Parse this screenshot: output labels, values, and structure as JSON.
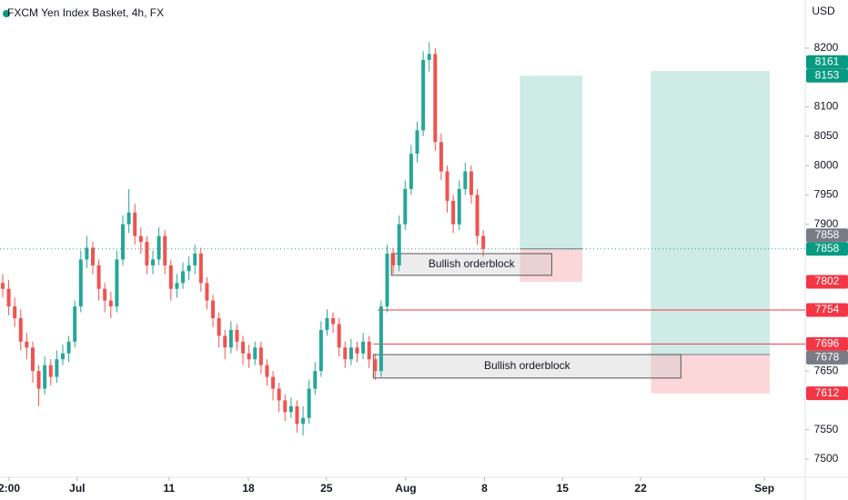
{
  "header": {
    "title": "FXCM Yen Index Basket, 4h, FX",
    "currency": "USD"
  },
  "chart_data": {
    "type": "candlestick",
    "open": [
      7800,
      7790,
      7760,
      7740,
      7700,
      7690,
      7650,
      7620,
      7660,
      7640,
      7670,
      7680,
      7700,
      7760,
      7840,
      7860,
      7830,
      7790,
      7770,
      7760,
      7840,
      7900,
      7920,
      7880,
      7870,
      7830,
      7840,
      7880,
      7830,
      7790,
      7800,
      7820,
      7830,
      7850,
      7800,
      7770,
      7740,
      7710,
      7690,
      7720,
      7700,
      7680,
      7670,
      7690,
      7660,
      7640,
      7620,
      7600,
      7580,
      7590,
      7560,
      7570,
      7620,
      7650,
      7720,
      7740,
      7730,
      7690,
      7670,
      7690,
      7680,
      7700,
      7670,
      7650,
      7760,
      7850,
      7830,
      7900,
      7960,
      8020,
      8060,
      8180,
      8190,
      8040,
      7990,
      7940,
      7900,
      7960,
      7990,
      7950,
      7880
    ],
    "high": [
      7815,
      7805,
      7775,
      7755,
      7715,
      7700,
      7660,
      7675,
      7670,
      7685,
      7695,
      7710,
      7770,
      7855,
      7880,
      7870,
      7840,
      7800,
      7785,
      7855,
      7915,
      7960,
      7935,
      7895,
      7880,
      7855,
      7895,
      7890,
      7840,
      7815,
      7835,
      7845,
      7865,
      7860,
      7810,
      7780,
      7750,
      7720,
      7735,
      7730,
      7710,
      7695,
      7700,
      7700,
      7670,
      7650,
      7630,
      7610,
      7605,
      7600,
      7590,
      7635,
      7665,
      7735,
      7755,
      7750,
      7740,
      7700,
      7705,
      7700,
      7715,
      7710,
      7680,
      7770,
      7865,
      7860,
      7915,
      7975,
      8035,
      8075,
      8195,
      8210,
      8200,
      8055,
      8000,
      7950,
      7975,
      8005,
      8000,
      7960,
      7890
    ],
    "low": [
      7775,
      7745,
      7725,
      7685,
      7670,
      7630,
      7590,
      7610,
      7625,
      7630,
      7660,
      7665,
      7690,
      7750,
      7825,
      7815,
      7770,
      7750,
      7740,
      7750,
      7830,
      7885,
      7865,
      7850,
      7815,
      7815,
      7830,
      7815,
      7770,
      7775,
      7790,
      7805,
      7815,
      7785,
      7755,
      7725,
      7690,
      7670,
      7680,
      7685,
      7660,
      7655,
      7660,
      7645,
      7625,
      7600,
      7580,
      7565,
      7570,
      7545,
      7540,
      7560,
      7610,
      7640,
      7710,
      7715,
      7675,
      7655,
      7660,
      7665,
      7670,
      7655,
      7635,
      7640,
      7750,
      7815,
      7820,
      7890,
      7950,
      8005,
      8050,
      8160,
      8025,
      7975,
      7920,
      7885,
      7890,
      7950,
      7935,
      7865,
      7845
    ],
    "close": [
      7790,
      7760,
      7740,
      7700,
      7690,
      7650,
      7620,
      7660,
      7640,
      7670,
      7680,
      7700,
      7760,
      7840,
      7860,
      7830,
      7790,
      7770,
      7760,
      7840,
      7900,
      7920,
      7880,
      7870,
      7830,
      7840,
      7880,
      7830,
      7790,
      7800,
      7820,
      7830,
      7850,
      7800,
      7770,
      7740,
      7710,
      7690,
      7720,
      7700,
      7680,
      7670,
      7690,
      7660,
      7640,
      7620,
      7600,
      7580,
      7590,
      7560,
      7570,
      7620,
      7650,
      7720,
      7740,
      7730,
      7690,
      7670,
      7690,
      7680,
      7700,
      7670,
      7650,
      7760,
      7850,
      7830,
      7900,
      7960,
      8020,
      8060,
      8180,
      8190,
      8040,
      7990,
      7940,
      7900,
      7960,
      7990,
      7950,
      7880,
      7858
    ],
    "up_color": "#26a69a",
    "down_color": "#ef5350",
    "xlim": [
      -0.45,
      133.6
    ],
    "ylim": [
      7469,
      8282
    ],
    "xticks": [
      {
        "value": 1.06,
        "label": "2:00"
      },
      {
        "value": 12.4,
        "label": "Jul"
      },
      {
        "value": 27.7,
        "label": "11"
      },
      {
        "value": 40.9,
        "label": "18"
      },
      {
        "value": 53.9,
        "label": "25"
      },
      {
        "value": 67.1,
        "label": "Aug"
      },
      {
        "value": 80.2,
        "label": "8"
      },
      {
        "value": 93.2,
        "label": "15"
      },
      {
        "value": 106.2,
        "label": "22"
      },
      {
        "value": 126.8,
        "label": "Sep"
      }
    ],
    "yticks": [
      7500,
      7550,
      7650,
      7900,
      7950,
      8000,
      8050,
      8100,
      8200
    ],
    "positions": [
      {
        "start": 86.1,
        "end": 96.5,
        "entry": 7858,
        "target": 8153,
        "stop": 7802
      },
      {
        "start": 107.9,
        "end": 127.7,
        "entry": 7678,
        "target": 8161,
        "stop": 7612
      }
    ],
    "orderblocks": [
      {
        "label": "Bullish orderblock",
        "start": 64.7,
        "end": 91.4,
        "top": 7850,
        "bottom": 7813
      },
      {
        "label": "Bullish orderblock",
        "start": 61.7,
        "end": 112.9,
        "top": 7678,
        "bottom": 7638
      }
    ],
    "levels": [
      {
        "value": 7754,
        "start": 62.4,
        "color": "#f23645"
      },
      {
        "value": 7696,
        "start": 61.7,
        "color": "#f23645"
      }
    ],
    "price_labels": [
      {
        "value": 8153,
        "color": "#089981"
      },
      {
        "value": 8161,
        "color": "#089981"
      },
      {
        "value": 7858,
        "color": "#089981"
      },
      {
        "value": 7858,
        "color": "#787b86"
      },
      {
        "value": 7802,
        "color": "#f23645"
      },
      {
        "value": 7754,
        "color": "#f23645"
      },
      {
        "value": 7696,
        "color": "#f23645"
      },
      {
        "value": 7678,
        "color": "#787b86"
      },
      {
        "value": 7612,
        "color": "#f23645"
      }
    ]
  }
}
